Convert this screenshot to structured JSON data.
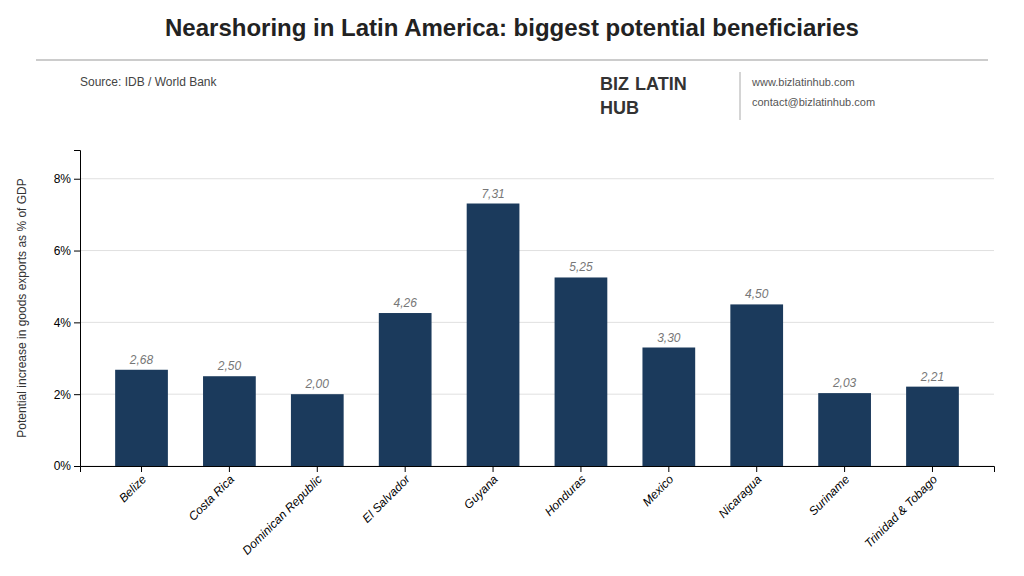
{
  "chart_data": {
    "type": "bar",
    "title": "Nearshoring in Latin America: biggest potential beneficiaries",
    "source": "Source:  IDB / World Bank",
    "ylabel": "Potential increase in goods exports as % of GDP",
    "annotations": [
      "BIZ",
      "LATIN",
      "HUB",
      "www.bizlatinhub.com",
      "contact@bizlatinhub.com"
    ],
    "categories": [
      "Belize",
      "Costa Rica",
      "Dominican Republic",
      "El Salvador",
      "Guyana",
      "Honduras",
      "Mexico",
      "Nicaragua",
      "Suriname",
      "Trinidad & Tobago"
    ],
    "values": [
      2.68,
      2.5,
      2.0,
      4.26,
      7.31,
      5.25,
      3.3,
      4.5,
      2.03,
      2.21
    ],
    "value_labels": [
      "2,68",
      "2,50",
      "2,00",
      "4,26",
      "7,31",
      "5,25",
      "3,30",
      "4,50",
      "2,03",
      "2,21"
    ],
    "data_labels": true,
    "color": "#1b3a5c",
    "ylim": [
      0,
      8.8
    ],
    "yticks": [
      {
        "value": 0,
        "label": "0%"
      },
      {
        "value": 2,
        "label": "2%"
      },
      {
        "value": 4,
        "label": "4%"
      },
      {
        "value": 6,
        "label": "6%"
      },
      {
        "value": 8,
        "label": "8%"
      }
    ],
    "grid": true
  }
}
